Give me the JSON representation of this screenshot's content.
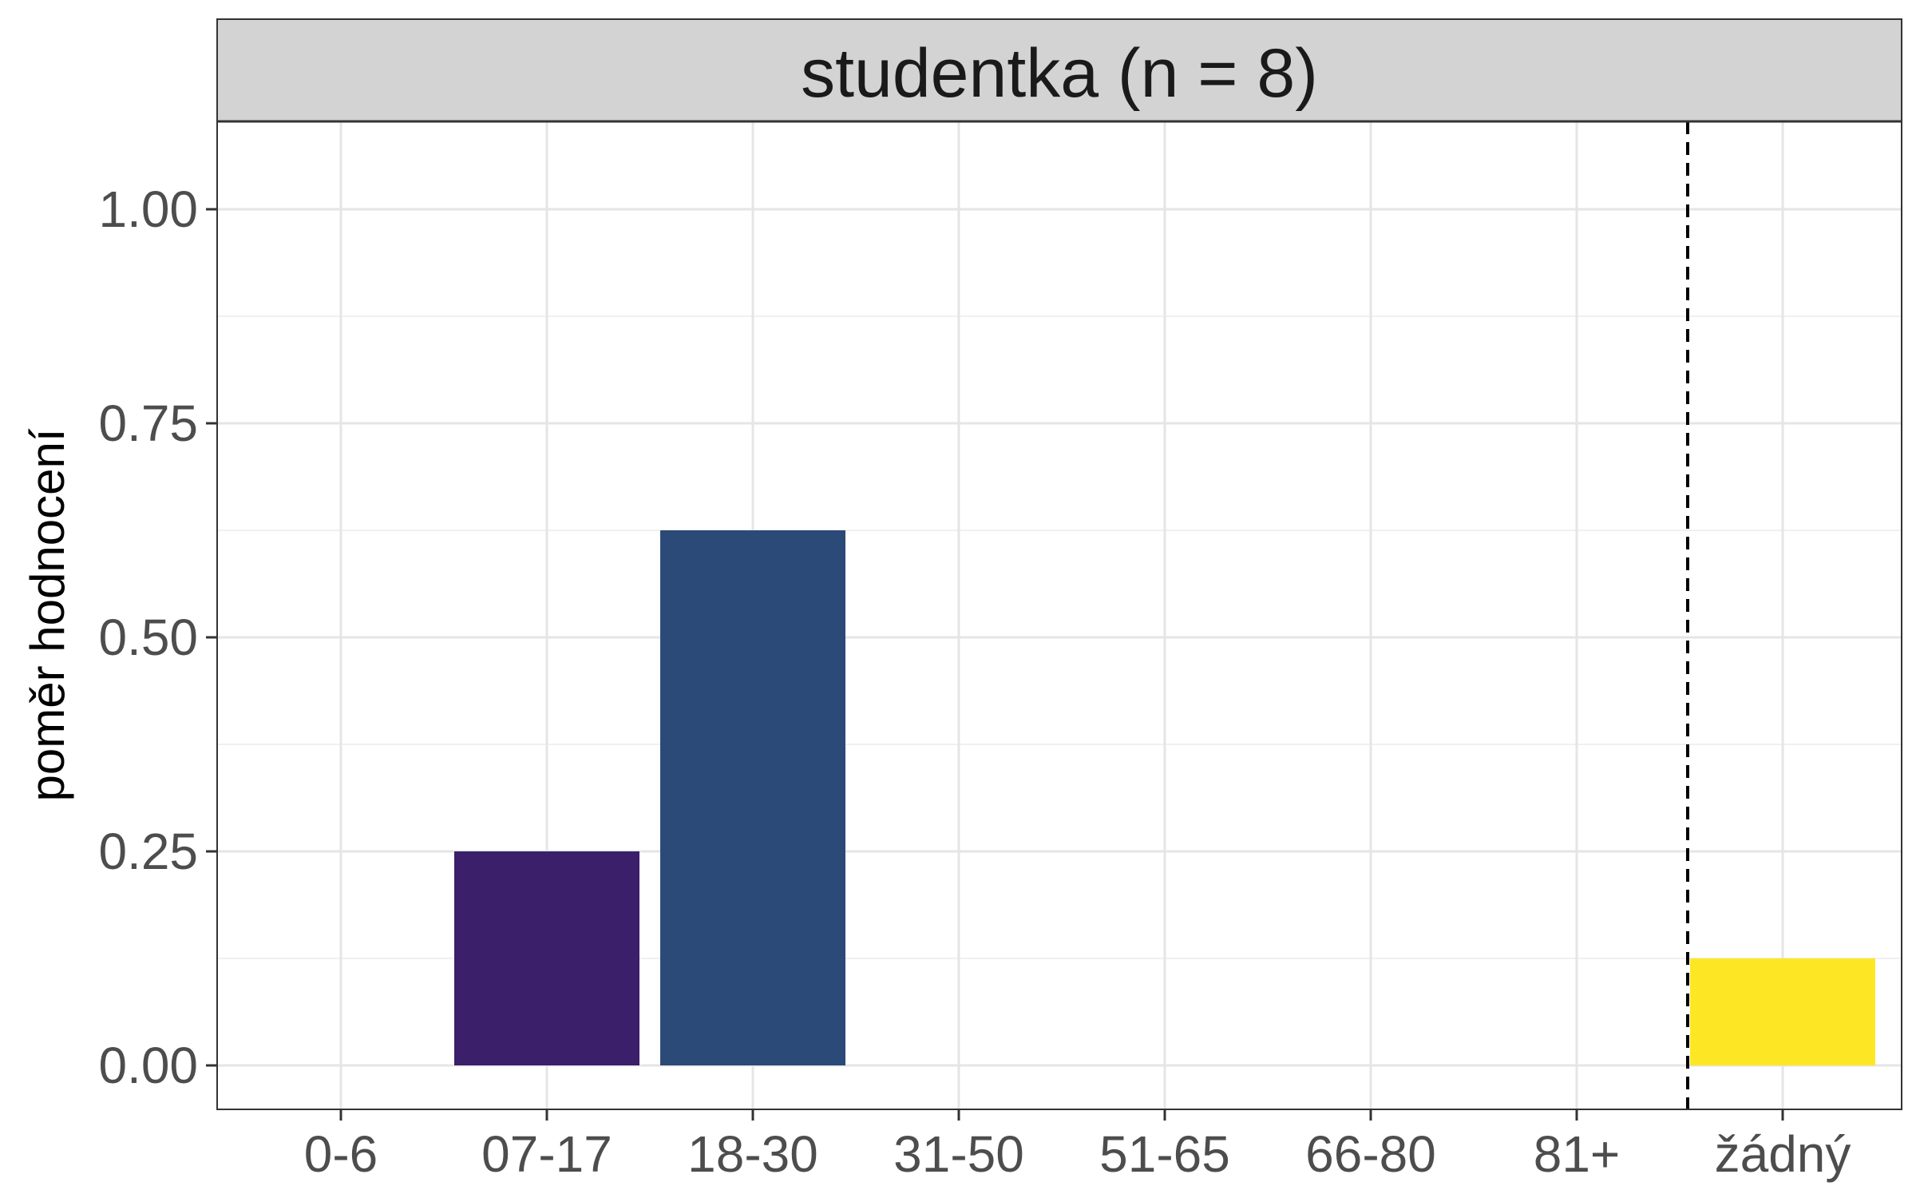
{
  "chart_data": {
    "type": "bar",
    "title": "studentka (n = 8)",
    "xlabel": "",
    "ylabel": "poměr hodnocení",
    "categories": [
      "0-6",
      "07-17",
      "18-30",
      "31-50",
      "51-65",
      "66-80",
      "81+",
      "žádný"
    ],
    "values": [
      0,
      0.25,
      0.625,
      0,
      0,
      0,
      0,
      0.125
    ],
    "bar_colors": [
      "#440154",
      "#3B1F6A",
      "#2C4A78",
      "#21908C",
      "#35B779",
      "#90D743",
      "#C5E12B",
      "#FDE725"
    ],
    "ylim": [
      0,
      1.1
    ],
    "y_ticks": [
      0,
      0.25,
      0.5,
      0.75,
      1.0
    ],
    "y_tick_labels": [
      "0.00",
      "0.25",
      "0.50",
      "0.75",
      "1.00"
    ],
    "reference_line": {
      "style": "dashed",
      "between": [
        "81+",
        "žádný"
      ]
    },
    "grid": true,
    "legend": "none",
    "strip_color": "#D3D3D3"
  }
}
